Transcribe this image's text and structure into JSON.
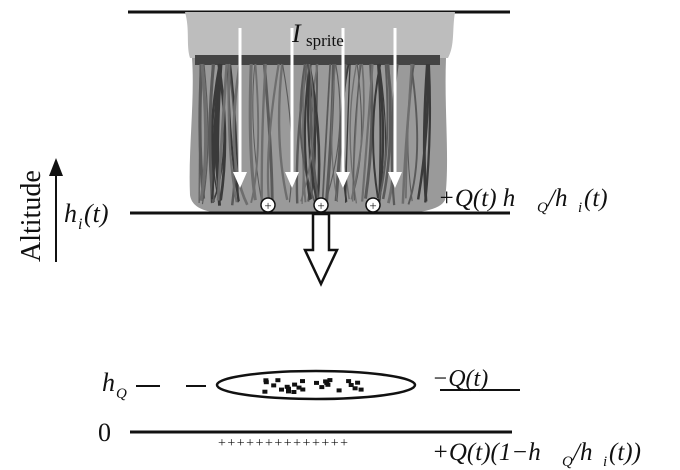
{
  "labels": {
    "current_symbol": "I",
    "current_subscript": "sprite",
    "axis_label": "Altitude",
    "ionosphere_h": "h",
    "ionosphere_sub": "i",
    "ionosphere_arg": "(t)",
    "charge_q_h": "h",
    "charge_q_sub": "Q",
    "ground_zero": "0",
    "upper_charge_main": "+Q(t) h",
    "upper_charge_sub1": "Q",
    "upper_charge_mid": "/h",
    "upper_charge_sub2": "i",
    "upper_charge_end": "(t)",
    "cloud_charge": "−Q(t)",
    "ground_charge_main": "+Q(t)(1−h",
    "ground_charge_sub1": "Q",
    "ground_charge_mid": "/h",
    "ground_charge_sub2": "i",
    "ground_charge_end": "(t))",
    "ground_plus_signs": "++++++++++++++"
  },
  "colors": {
    "ink": "#111111",
    "glow": "#bdbdbd",
    "streamer": "#5a5a5a",
    "streamer_dark": "#3a3a3a"
  }
}
